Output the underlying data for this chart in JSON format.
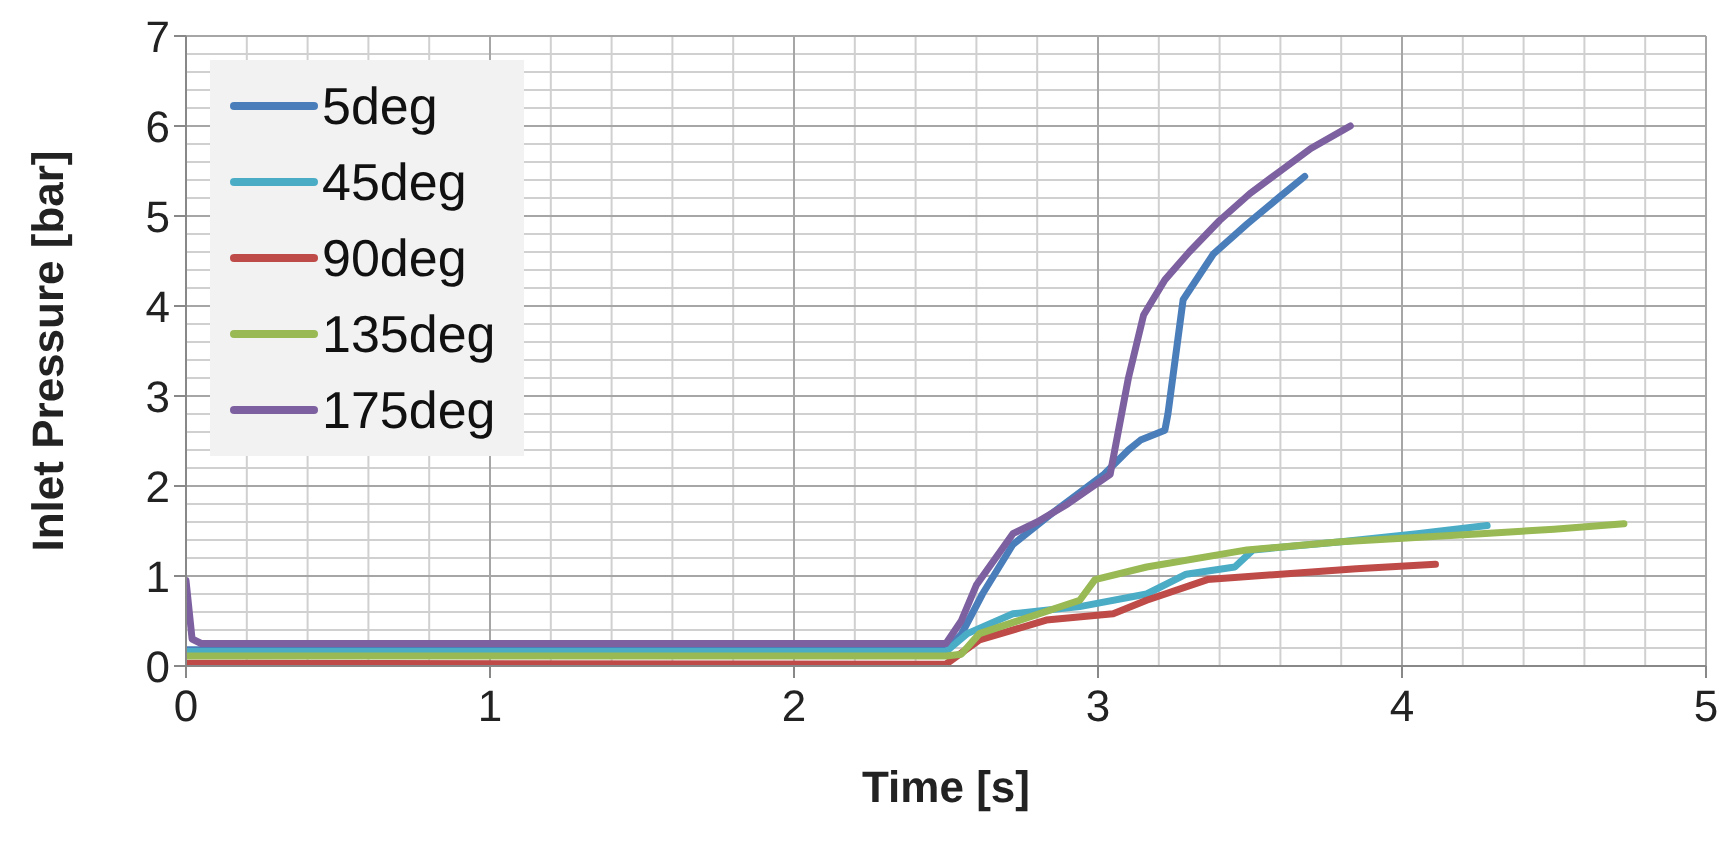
{
  "chart_data": {
    "type": "line",
    "xlabel": "Time [s]",
    "ylabel": "Inlet Pressure  [bar]",
    "xlim": [
      0,
      5
    ],
    "xticks": [
      0,
      1,
      2,
      3,
      4,
      5
    ],
    "ylim": [
      0,
      7
    ],
    "yticks": [
      0,
      1,
      2,
      3,
      4,
      5,
      6,
      7
    ],
    "grid": true,
    "legend": "top left",
    "marker": "none",
    "line_style": "solid",
    "series": [
      {
        "name": "5deg",
        "color": "#4a7ebb",
        "x": [
          0,
          0.03,
          2.5,
          2.55,
          2.62,
          2.72,
          2.85,
          3.02,
          3.1,
          3.14,
          3.22,
          3.23,
          3.28,
          3.38,
          3.49,
          3.6,
          3.68
        ],
        "values": [
          0.18,
          0.18,
          0.18,
          0.35,
          0.8,
          1.35,
          1.7,
          2.13,
          2.4,
          2.51,
          2.62,
          2.8,
          4.07,
          4.58,
          4.91,
          5.22,
          5.44
        ]
      },
      {
        "name": "45deg",
        "color": "#4bacc6",
        "x": [
          0,
          0.03,
          2.5,
          2.57,
          2.72,
          2.94,
          3.16,
          3.29,
          3.45,
          3.51,
          3.8,
          4.05,
          4.28
        ],
        "values": [
          0.16,
          0.16,
          0.16,
          0.36,
          0.58,
          0.66,
          0.8,
          1.02,
          1.1,
          1.29,
          1.38,
          1.47,
          1.56
        ]
      },
      {
        "name": "90deg",
        "color": "#be4b48",
        "x": [
          0,
          0.03,
          2.5,
          2.61,
          2.83,
          3.05,
          3.16,
          3.36,
          3.6,
          3.85,
          4.11
        ],
        "values": [
          0.03,
          0.03,
          0.02,
          0.29,
          0.51,
          0.58,
          0.73,
          0.96,
          1.02,
          1.08,
          1.13
        ]
      },
      {
        "name": "135deg",
        "color": "#98b954",
        "x": [
          0,
          0.03,
          2.5,
          2.55,
          2.61,
          2.94,
          2.99,
          3.16,
          3.49,
          3.8,
          4.26,
          4.5,
          4.73
        ],
        "values": [
          0.11,
          0.11,
          0.11,
          0.13,
          0.36,
          0.73,
          0.96,
          1.1,
          1.29,
          1.38,
          1.47,
          1.52,
          1.58
        ]
      },
      {
        "name": "175deg",
        "color": "#7d60a0",
        "x": [
          0,
          0.02,
          0.05,
          2.5,
          2.55,
          2.6,
          2.72,
          2.8,
          2.9,
          3.04,
          3.1,
          3.15,
          3.22,
          3.3,
          3.4,
          3.5,
          3.6,
          3.7,
          3.83
        ],
        "values": [
          0.95,
          0.3,
          0.25,
          0.25,
          0.5,
          0.9,
          1.47,
          1.6,
          1.8,
          2.13,
          3.2,
          3.9,
          4.29,
          4.6,
          4.95,
          5.25,
          5.5,
          5.75,
          6.0
        ]
      }
    ]
  }
}
